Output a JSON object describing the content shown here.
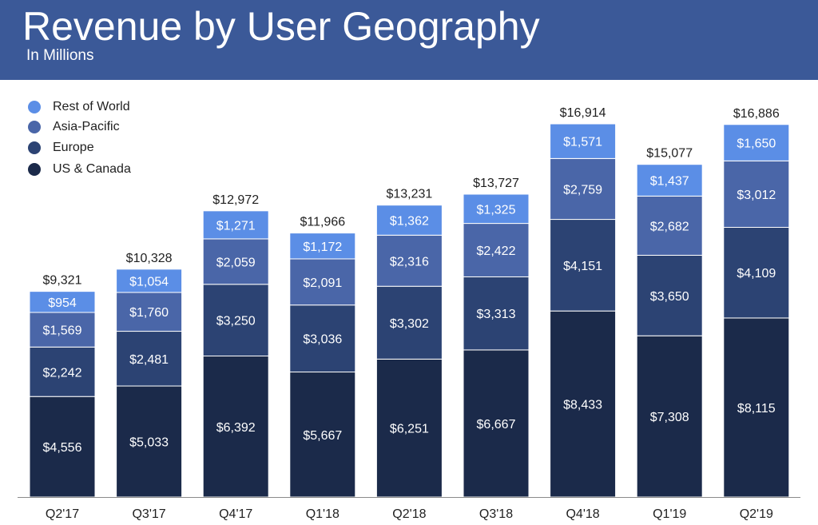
{
  "header": {
    "title": "Revenue by User Geography",
    "subtitle": "In Millions"
  },
  "colors": {
    "header_bg": "#3b5998",
    "us_canada": "#1b2a4a",
    "europe": "#2c4373",
    "asia_pacific": "#4a66a8",
    "rest_of_world": "#5b8ee6"
  },
  "legend": [
    {
      "label": "Rest of World",
      "color": "#5b8ee6"
    },
    {
      "label": "Asia-Pacific",
      "color": "#4a66a8"
    },
    {
      "label": "Europe",
      "color": "#2c4373"
    },
    {
      "label": "US & Canada",
      "color": "#1b2a4a"
    }
  ],
  "chart_data": {
    "type": "bar",
    "stacked": true,
    "title": "Revenue by User Geography",
    "subtitle": "In Millions",
    "categories": [
      "Q2'17",
      "Q3'17",
      "Q4'17",
      "Q1'18",
      "Q2'18",
      "Q3'18",
      "Q4'18",
      "Q1'19",
      "Q2'19"
    ],
    "series": [
      {
        "name": "US & Canada",
        "color": "#1b2a4a",
        "values": [
          4556,
          5033,
          6392,
          5667,
          6251,
          6667,
          8433,
          7308,
          8115
        ],
        "labels": [
          "$4,556",
          "$5,033",
          "$6,392",
          "$5,667",
          "$6,251",
          "$6,667",
          "$8,433",
          "$7,308",
          "$8,115"
        ]
      },
      {
        "name": "Europe",
        "color": "#2c4373",
        "values": [
          2242,
          2481,
          3250,
          3036,
          3302,
          3313,
          4151,
          3650,
          4109
        ],
        "labels": [
          "$2,242",
          "$2,481",
          "$3,250",
          "$3,036",
          "$3,302",
          "$3,313",
          "$4,151",
          "$3,650",
          "$4,109"
        ]
      },
      {
        "name": "Asia-Pacific",
        "color": "#4a66a8",
        "values": [
          1569,
          1760,
          2059,
          2091,
          2316,
          2422,
          2759,
          2682,
          3012
        ],
        "labels": [
          "$1,569",
          "$1,760",
          "$2,059",
          "$2,091",
          "$2,316",
          "$2,422",
          "$2,759",
          "$2,682",
          "$3,012"
        ]
      },
      {
        "name": "Rest of World",
        "color": "#5b8ee6",
        "values": [
          954,
          1054,
          1271,
          1172,
          1362,
          1325,
          1571,
          1437,
          1650
        ],
        "labels": [
          "$954",
          "$1,054",
          "$1,271",
          "$1,172",
          "$1,362",
          "$1,325",
          "$1,571",
          "$1,437",
          "$1,650"
        ]
      }
    ],
    "totals": [
      9321,
      10328,
      12972,
      11966,
      13231,
      13727,
      16914,
      15077,
      16886
    ],
    "total_labels": [
      "$9,321",
      "$10,328",
      "$12,972",
      "$11,966",
      "$13,231",
      "$13,727",
      "$16,914",
      "$15,077",
      "$16,886"
    ],
    "ylim": [
      0,
      16914
    ],
    "grid": false,
    "legend_position": "top-left"
  }
}
